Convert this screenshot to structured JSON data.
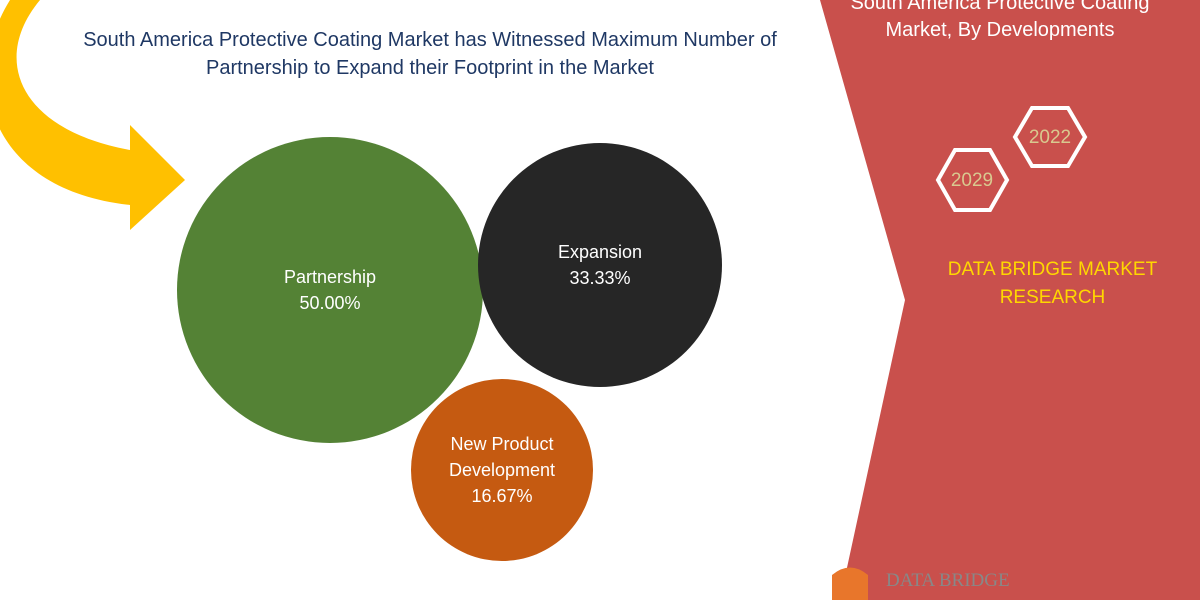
{
  "chart_data": {
    "type": "bubble",
    "title": "South America Protective Coating Market has Witnessed Maximum Number of Partnership to Expand their Footprint in the Market",
    "categories": [
      "Partnership",
      "Expansion",
      "New Product Development"
    ],
    "values": [
      50,
      33.33,
      16.67
    ],
    "value_labels": [
      "50.00%",
      "33.33%",
      "16.67%"
    ],
    "colors": [
      "#548235",
      "#262626",
      "#c55a11"
    ]
  },
  "panel": {
    "title": "South America Protective Coating Market, By Developments",
    "years": [
      "2022",
      "2029"
    ],
    "brand": "DATA BRIDGE MARKET RESEARCH",
    "logo": "DATA BRIDGE"
  }
}
